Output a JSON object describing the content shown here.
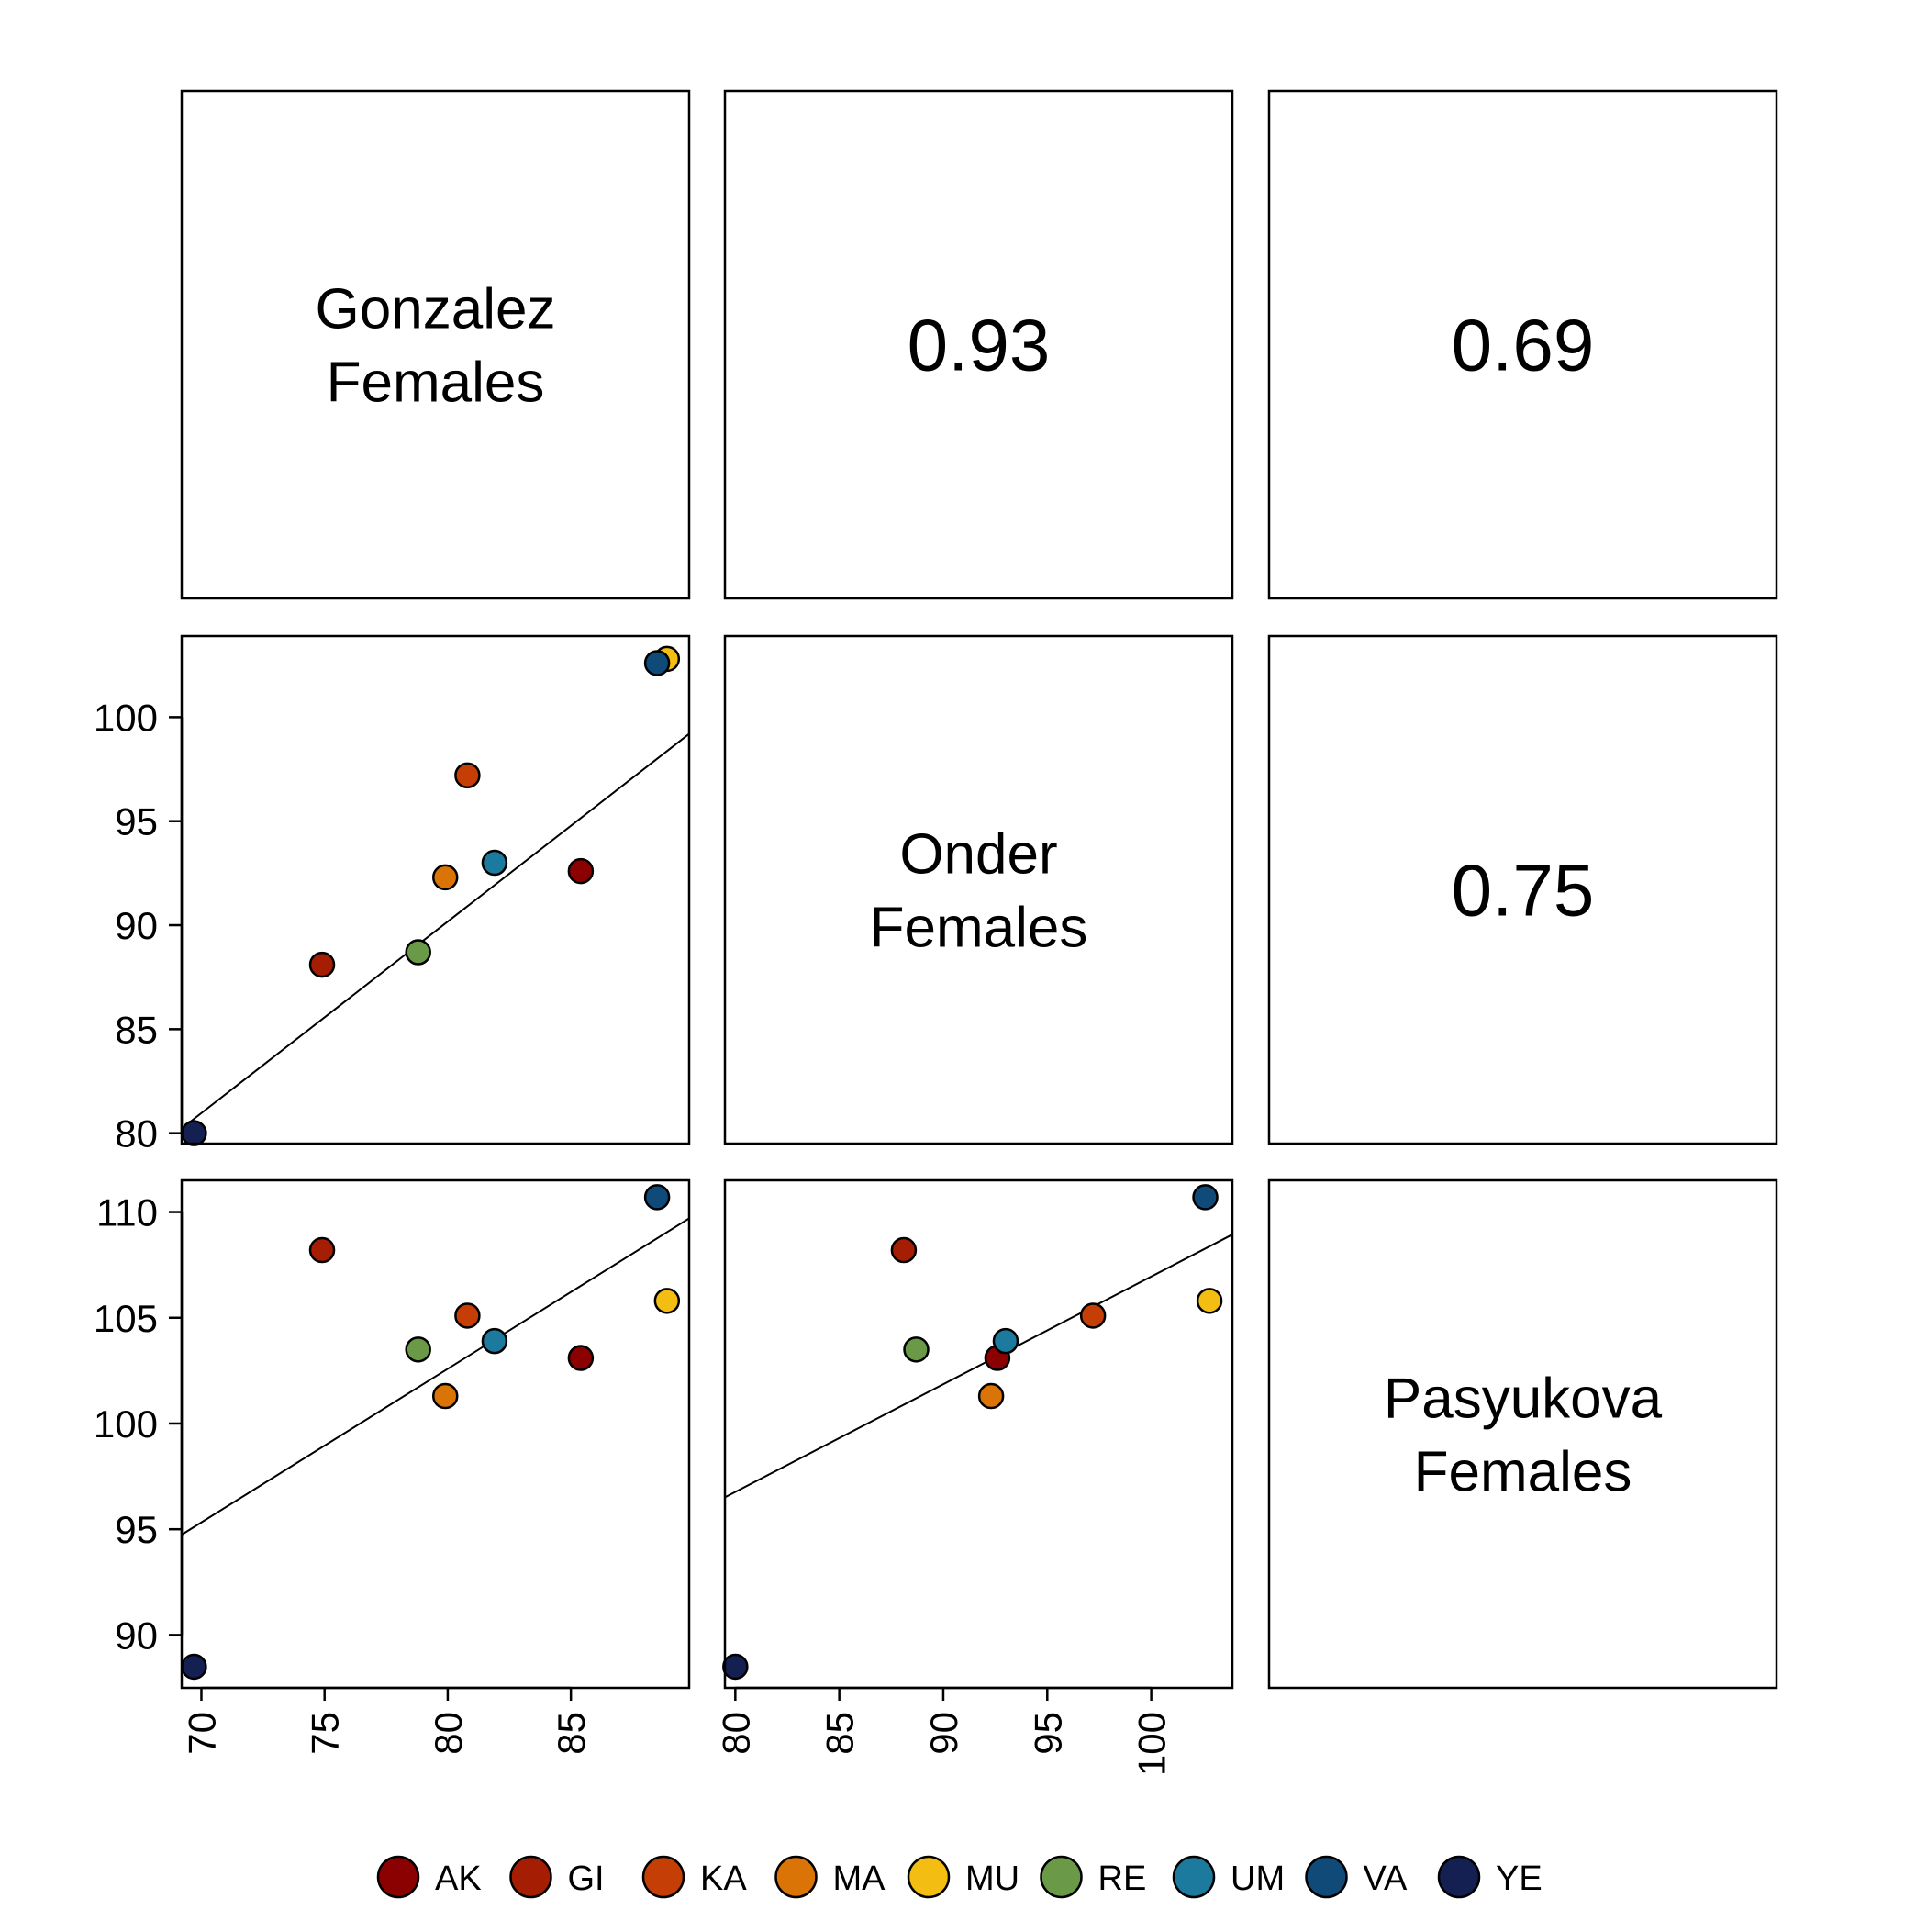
{
  "chart_data": {
    "type": "scatter-matrix",
    "variables": [
      {
        "id": "gonzalez",
        "label": [
          "Gonzalez",
          "Females"
        ]
      },
      {
        "id": "onder",
        "label": [
          "Onder",
          "Females"
        ]
      },
      {
        "id": "pasyukova",
        "label": [
          "Pasyukova",
          "Females"
        ]
      }
    ],
    "correlations": [
      {
        "row": 0,
        "col": 1,
        "value": "0.93"
      },
      {
        "row": 0,
        "col": 2,
        "value": "0.69"
      },
      {
        "row": 1,
        "col": 2,
        "value": "0.75"
      }
    ],
    "axes": {
      "gonzalez": {
        "range": [
          69.2,
          89.8
        ],
        "ticks": [
          70,
          75,
          80,
          85
        ]
      },
      "onder": {
        "range": [
          79.5,
          103.9
        ],
        "ticks": [
          80,
          85,
          90,
          95,
          100
        ]
      },
      "pasyukova": {
        "range": [
          87.5,
          111.5
        ],
        "ticks": [
          90,
          95,
          100,
          105,
          110
        ]
      }
    },
    "points": [
      {
        "group": "AK",
        "gonzalez": 85.4,
        "onder": 92.6,
        "pasyukova": 103.1
      },
      {
        "group": "GI",
        "gonzalez": 74.9,
        "onder": 88.1,
        "pasyukova": 108.2
      },
      {
        "group": "KA",
        "gonzalez": 80.8,
        "onder": 97.2,
        "pasyukova": 105.1
      },
      {
        "group": "MA",
        "gonzalez": 79.9,
        "onder": 92.3,
        "pasyukova": 101.3
      },
      {
        "group": "MU",
        "gonzalez": 88.9,
        "onder": 102.8,
        "pasyukova": 105.8
      },
      {
        "group": "RE",
        "gonzalez": 78.8,
        "onder": 88.7,
        "pasyukova": 103.5
      },
      {
        "group": "UM",
        "gonzalez": 81.9,
        "onder": 93.0,
        "pasyukova": 103.9
      },
      {
        "group": "VA",
        "gonzalez": 88.5,
        "onder": 102.6,
        "pasyukova": 110.7
      },
      {
        "group": "YE",
        "gonzalez": 69.7,
        "onder": 80.0,
        "pasyukova": 88.5
      }
    ],
    "fits": [
      {
        "x": "gonzalez",
        "y": "onder",
        "intercept": 16.51,
        "slope": 0.9208
      },
      {
        "x": "gonzalez",
        "y": "pasyukova",
        "intercept": 44.49,
        "slope": 0.7262
      },
      {
        "x": "onder",
        "y": "pasyukova",
        "intercept": 56.02,
        "slope": 0.5093
      }
    ],
    "legend": {
      "placement": "bottom",
      "items": [
        {
          "label": "AK",
          "color": "#8B0000"
        },
        {
          "label": "GI",
          "color": "#A51E04"
        },
        {
          "label": "KA",
          "color": "#C43E05"
        },
        {
          "label": "MA",
          "color": "#DB7406"
        },
        {
          "label": "MU",
          "color": "#F4BD12"
        },
        {
          "label": "RE",
          "color": "#6A9A48"
        },
        {
          "label": "UM",
          "color": "#1C7A9E"
        },
        {
          "label": "VA",
          "color": "#104A79"
        },
        {
          "label": "YE",
          "color": "#142052"
        }
      ]
    }
  }
}
